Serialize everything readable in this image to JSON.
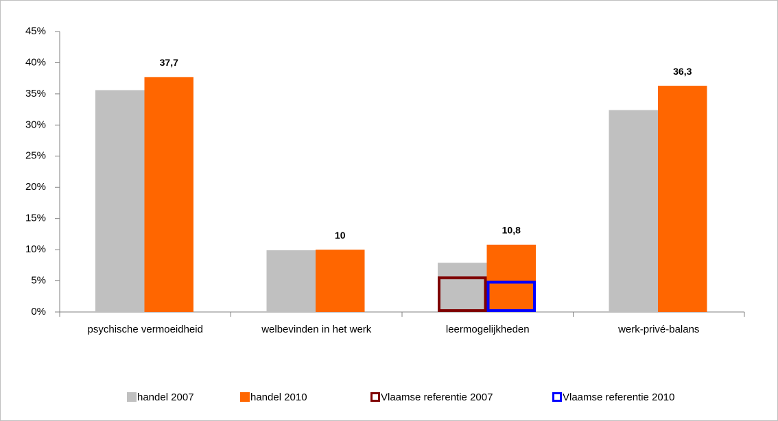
{
  "chart_data": {
    "type": "bar",
    "categories": [
      "psychische vermoeidheid",
      "welbevinden in het werk",
      "leermogelijkheden",
      "werk-privé-balans"
    ],
    "series": [
      {
        "name": "handel 2007",
        "color": "#c0c0c0",
        "values": [
          35.6,
          9.9,
          7.9,
          32.4
        ]
      },
      {
        "name": "handel 2010",
        "color": "#ff6600",
        "values": [
          37.7,
          10,
          10.8,
          36.3
        ],
        "value_labels": [
          "37,7",
          "10",
          "10,8",
          "36,3"
        ]
      },
      {
        "name": "Vlaamse referentie 2007",
        "color": "#7f0000",
        "values": [
          null,
          null,
          5.7,
          null
        ]
      },
      {
        "name": "Vlaamse referentie 2010",
        "color": "#0000ff",
        "values": [
          null,
          null,
          5,
          null
        ]
      }
    ],
    "ylim": [
      0,
      45
    ],
    "yticks": [
      {
        "value": 0,
        "label": "0%"
      },
      {
        "value": 5,
        "label": "5%"
      },
      {
        "value": 10,
        "label": "10%"
      },
      {
        "value": 15,
        "label": "15%"
      },
      {
        "value": 20,
        "label": "20%"
      },
      {
        "value": 25,
        "label": "25%"
      },
      {
        "value": 30,
        "label": "30%"
      },
      {
        "value": 35,
        "label": "35%"
      },
      {
        "value": 40,
        "label": "40%"
      },
      {
        "value": 45,
        "label": "45%"
      }
    ],
    "grid": false
  }
}
